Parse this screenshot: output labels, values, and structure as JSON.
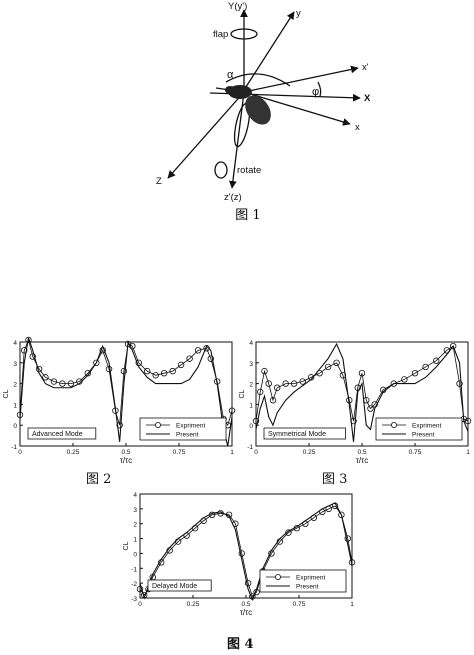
{
  "fig1": {
    "axis_Y_prime": "Y(y')",
    "axis_y": "y",
    "axis_x_prime": "x'",
    "axis_X": "X",
    "axis_x": "x",
    "axis_Z": "Z",
    "axis_z_prime": "z'(z)",
    "label_flap": "flap",
    "label_rotate": "rotate",
    "label_alpha": "α",
    "label_phi": "φ",
    "caption": "图 1"
  },
  "captions": {
    "fig2": "图 2",
    "fig3": "图 3",
    "fig4": "图 4"
  },
  "legend": {
    "experiment": "Expriment",
    "present": "Present"
  },
  "chart_data": [
    {
      "id": "fig2",
      "type": "line",
      "mode_label": "Advanced Mode",
      "ylabel": "CL",
      "xlabel": "τ/τc",
      "ylim": [
        -1,
        4
      ],
      "xlim": [
        0,
        1
      ],
      "x_ticks": [
        "0",
        "0.25",
        "0.5",
        "0.75",
        "1"
      ],
      "y_ticks": [
        "-1",
        "0",
        "1",
        "2",
        "3",
        "4"
      ],
      "series": [
        {
          "name": "Expriment",
          "x": [
            0,
            0.02,
            0.04,
            0.06,
            0.09,
            0.12,
            0.16,
            0.2,
            0.24,
            0.28,
            0.32,
            0.36,
            0.39,
            0.42,
            0.45,
            0.47,
            0.49,
            0.51,
            0.53,
            0.56,
            0.6,
            0.64,
            0.68,
            0.72,
            0.76,
            0.8,
            0.84,
            0.88,
            0.9,
            0.93,
            0.96,
            0.98,
            1.0
          ],
          "y": [
            0.5,
            3.6,
            4.1,
            3.3,
            2.7,
            2.3,
            2.1,
            2.0,
            2.0,
            2.1,
            2.5,
            3.0,
            3.6,
            2.7,
            0.7,
            0.0,
            2.6,
            3.9,
            3.8,
            3.0,
            2.6,
            2.4,
            2.5,
            2.6,
            2.9,
            3.2,
            3.6,
            3.7,
            3.2,
            2.1,
            0.3,
            0.0,
            0.7
          ]
        },
        {
          "name": "Present",
          "x": [
            0,
            0.02,
            0.04,
            0.06,
            0.09,
            0.12,
            0.16,
            0.2,
            0.24,
            0.28,
            0.32,
            0.36,
            0.39,
            0.42,
            0.45,
            0.47,
            0.49,
            0.51,
            0.53,
            0.56,
            0.6,
            0.64,
            0.68,
            0.72,
            0.76,
            0.8,
            0.84,
            0.88,
            0.9,
            0.93,
            0.96,
            0.98,
            1.0
          ],
          "y": [
            0.3,
            3.0,
            4.2,
            3.6,
            2.5,
            2.0,
            1.8,
            1.8,
            1.8,
            2.0,
            2.4,
            3.0,
            3.8,
            3.0,
            0.8,
            -0.8,
            2.0,
            4.0,
            3.6,
            2.8,
            2.3,
            2.0,
            2.0,
            2.0,
            2.0,
            2.2,
            2.8,
            3.8,
            3.6,
            2.0,
            -0.2,
            -1.0,
            0.4
          ]
        }
      ]
    },
    {
      "id": "fig3",
      "type": "line",
      "mode_label": "Symmetrical Mode",
      "ylabel": "CL",
      "xlabel": "τ/τc",
      "ylim": [
        -1,
        4
      ],
      "xlim": [
        0,
        1
      ],
      "x_ticks": [
        "0",
        "0.25",
        "0.5",
        "0.75",
        "1"
      ],
      "y_ticks": [
        "-1",
        "0",
        "1",
        "2",
        "3",
        "4"
      ],
      "series": [
        {
          "name": "Expriment",
          "x": [
            0,
            0.02,
            0.04,
            0.06,
            0.08,
            0.1,
            0.14,
            0.18,
            0.22,
            0.26,
            0.3,
            0.34,
            0.38,
            0.41,
            0.44,
            0.46,
            0.48,
            0.5,
            0.52,
            0.54,
            0.56,
            0.6,
            0.65,
            0.7,
            0.75,
            0.8,
            0.85,
            0.9,
            0.93,
            0.96,
            0.98,
            1.0
          ],
          "y": [
            0.2,
            1.6,
            2.6,
            2.0,
            1.2,
            1.8,
            2.0,
            2.0,
            2.1,
            2.3,
            2.5,
            2.8,
            3.0,
            2.4,
            1.2,
            0.2,
            1.8,
            2.5,
            1.2,
            0.8,
            1.0,
            1.7,
            2.0,
            2.2,
            2.5,
            2.8,
            3.1,
            3.6,
            3.8,
            2.0,
            0.3,
            0.2
          ]
        },
        {
          "name": "Present",
          "x": [
            0,
            0.02,
            0.04,
            0.06,
            0.08,
            0.1,
            0.14,
            0.18,
            0.22,
            0.26,
            0.3,
            0.34,
            0.38,
            0.41,
            0.44,
            0.46,
            0.48,
            0.5,
            0.52,
            0.54,
            0.56,
            0.6,
            0.65,
            0.7,
            0.75,
            0.8,
            0.85,
            0.9,
            0.93,
            0.96,
            0.98,
            1.0
          ],
          "y": [
            -0.2,
            0.8,
            1.4,
            0.4,
            0.0,
            0.6,
            1.2,
            1.6,
            1.9,
            2.2,
            2.7,
            3.2,
            3.9,
            3.2,
            1.0,
            -0.8,
            1.6,
            2.0,
            0.0,
            -0.2,
            0.8,
            1.6,
            2.0,
            2.0,
            2.0,
            2.3,
            2.8,
            3.4,
            3.8,
            3.0,
            0.2,
            -0.3
          ]
        }
      ]
    },
    {
      "id": "fig4",
      "type": "line",
      "mode_label": "Delayed Mode",
      "ylabel": "CL",
      "xlabel": "τ/τc",
      "ylim": [
        -3,
        4
      ],
      "xlim": [
        0,
        1
      ],
      "x_ticks": [
        "0",
        "0.25",
        "0.5",
        "0.75",
        "1"
      ],
      "y_ticks": [
        "-3",
        "-2",
        "-1",
        "0",
        "1",
        "2",
        "3",
        "4"
      ],
      "series": [
        {
          "name": "Expriment",
          "x": [
            0,
            0.02,
            0.04,
            0.06,
            0.1,
            0.14,
            0.18,
            0.22,
            0.26,
            0.3,
            0.34,
            0.38,
            0.42,
            0.45,
            0.48,
            0.51,
            0.53,
            0.55,
            0.58,
            0.62,
            0.66,
            0.7,
            0.74,
            0.78,
            0.82,
            0.86,
            0.89,
            0.92,
            0.95,
            0.98,
            1.0
          ],
          "y": [
            -2.4,
            -2.8,
            -2.4,
            -1.6,
            -0.6,
            0.2,
            0.8,
            1.2,
            1.7,
            2.2,
            2.6,
            2.7,
            2.6,
            2.0,
            0.0,
            -2.0,
            -2.9,
            -2.6,
            -1.2,
            0.0,
            0.8,
            1.4,
            1.7,
            2.0,
            2.4,
            2.8,
            3.0,
            3.2,
            2.6,
            1.0,
            -0.6
          ]
        },
        {
          "name": "Present",
          "x": [
            0,
            0.02,
            0.04,
            0.06,
            0.1,
            0.14,
            0.18,
            0.22,
            0.26,
            0.3,
            0.34,
            0.38,
            0.42,
            0.45,
            0.48,
            0.51,
            0.53,
            0.55,
            0.58,
            0.62,
            0.66,
            0.7,
            0.74,
            0.78,
            0.82,
            0.86,
            0.89,
            0.92,
            0.95,
            0.98,
            1.0
          ],
          "y": [
            -2.0,
            -3.0,
            -2.2,
            -1.4,
            -0.4,
            0.4,
            1.0,
            1.4,
            1.9,
            2.4,
            2.7,
            2.8,
            2.5,
            1.6,
            -0.4,
            -2.4,
            -3.1,
            -2.4,
            -1.0,
            0.2,
            1.0,
            1.5,
            1.8,
            2.2,
            2.6,
            3.0,
            3.2,
            3.4,
            2.6,
            0.6,
            -0.8
          ]
        }
      ]
    }
  ]
}
